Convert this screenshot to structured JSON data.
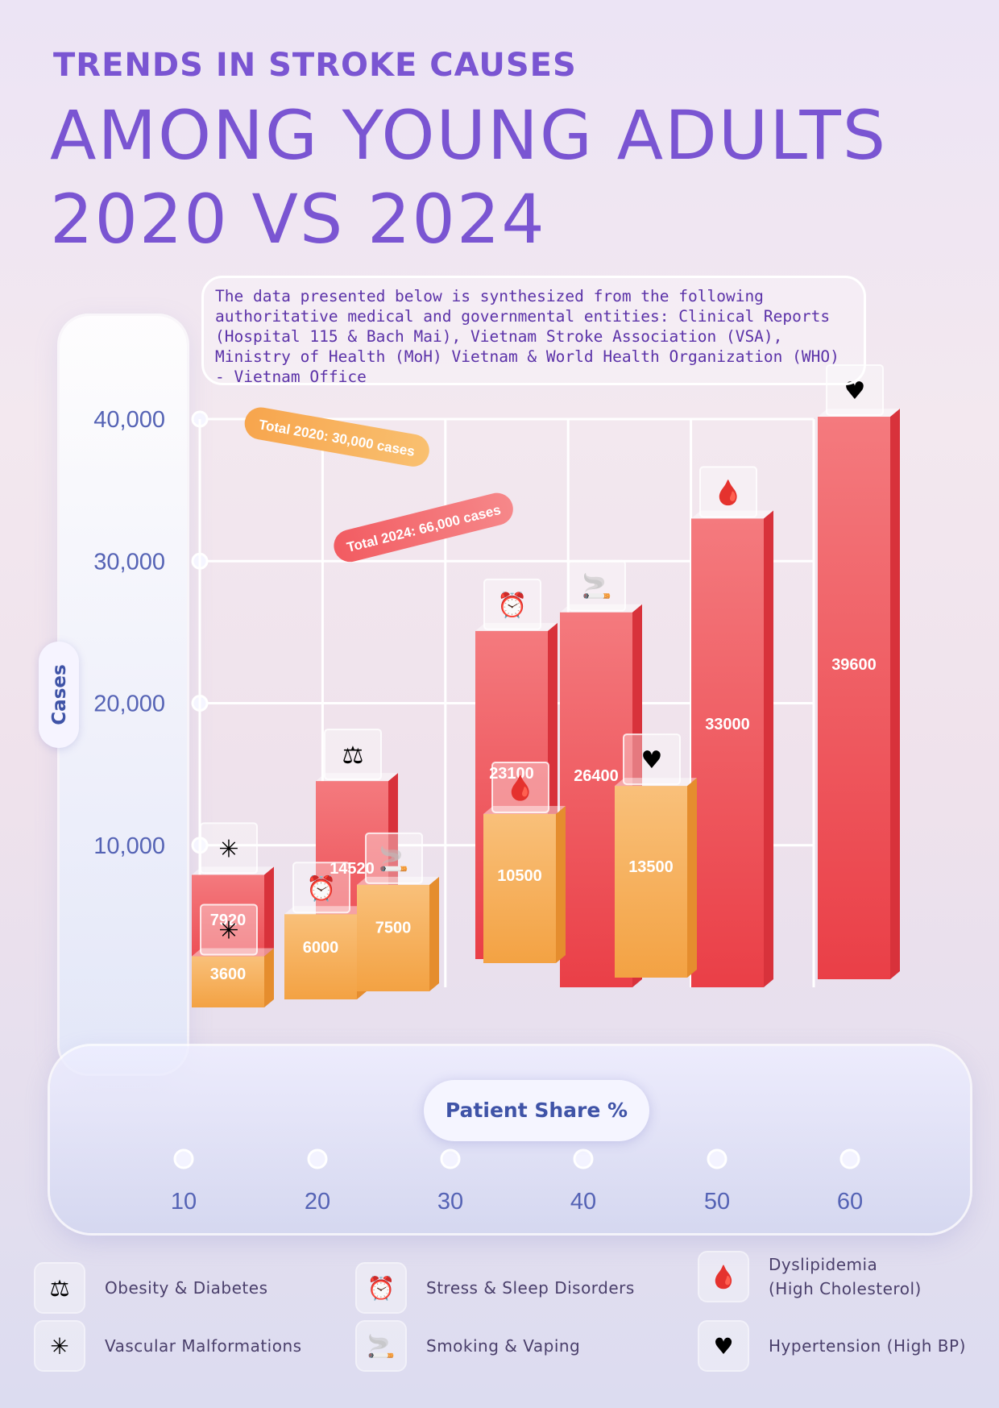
{
  "header": {
    "title_top": "TRENDS IN STROKE CAUSES",
    "title_main": "AMONG YOUNG ADULTS",
    "title_years": "2020 VS 2024"
  },
  "note": {
    "text": "The data presented below is synthesized from the following authoritative medical and governmental entities: Clinical Reports (Hospital 115 & Bach Mai), Vietnam Stroke Association (VSA), Ministry of Health (MoH) Vietnam & World Health Organization (WHO) - Vietnam Office"
  },
  "chart_data": {
    "type": "bar",
    "xlabel": "Patient Share %",
    "ylabel": "Cases",
    "x_ticks": [
      "10",
      "20",
      "30",
      "40",
      "50",
      "60"
    ],
    "y_ticks": [
      "10,000",
      "20,000",
      "30,000",
      "40,000"
    ],
    "ylim": [
      0,
      40000
    ],
    "grid": true,
    "series": [
      {
        "name": "Total 2020:  30,000 cases",
        "color": "#f5a64a",
        "values": [
          {
            "category": "Vascular Malformations",
            "value": 3600,
            "icon": "vascular-icon"
          },
          {
            "category": "Stress & Sleep Disorders",
            "value": 6000,
            "icon": "stress-sleep-icon"
          },
          {
            "category": "Smoking & Vaping",
            "value": 7500,
            "icon": "smoking-vaping-icon"
          },
          {
            "category": "Dyslipidemia (High Cholesterol)",
            "value": 10500,
            "icon": "cholesterol-icon"
          },
          {
            "category": "Hypertension (High BP)",
            "value": 13500,
            "icon": "hypertension-icon"
          }
        ]
      },
      {
        "name": "Total 2024:  66,000 cases",
        "color": "#ee4e55",
        "values": [
          {
            "category": "Vascular Malformations",
            "value": 7920,
            "icon": "vascular-icon"
          },
          {
            "category": "Obesity & Diabetes",
            "value": 14520,
            "icon": "obesity-diabetes-icon"
          },
          {
            "category": "Stress & Sleep Disorders",
            "value": 23100,
            "icon": "stress-sleep-icon"
          },
          {
            "category": "Smoking & Vaping",
            "value": 26400,
            "icon": "smoking-vaping-icon"
          },
          {
            "category": "Dyslipidemia (High Cholesterol)",
            "value": 33000,
            "icon": "cholesterol-icon"
          },
          {
            "category": "Hypertension (High BP)",
            "value": 39600,
            "icon": "hypertension-icon"
          }
        ]
      }
    ],
    "extra_2020_marker": {
      "category": "Obesity & Diabetes",
      "value": 3600,
      "icon": "obesity-diabetes-icon"
    }
  },
  "legend": [
    {
      "label": "Obesity & Diabetes",
      "label2": "",
      "icon": "obesity-diabetes-icon",
      "glyph": "⚖"
    },
    {
      "label": "Stress & Sleep Disorders",
      "label2": "",
      "icon": "stress-sleep-icon",
      "glyph": "⏰"
    },
    {
      "label": "Dyslipidemia",
      "label2": "(High Cholesterol)",
      "icon": "cholesterol-icon",
      "glyph": "🩸"
    },
    {
      "label": "Vascular Malformations",
      "label2": "",
      "icon": "vascular-icon",
      "glyph": "✳"
    },
    {
      "label": "Smoking & Vaping",
      "label2": "",
      "icon": "smoking-vaping-icon",
      "glyph": "🚬"
    },
    {
      "label": "Hypertension (High BP)",
      "label2": "",
      "icon": "hypertension-icon",
      "glyph": "♥"
    }
  ]
}
